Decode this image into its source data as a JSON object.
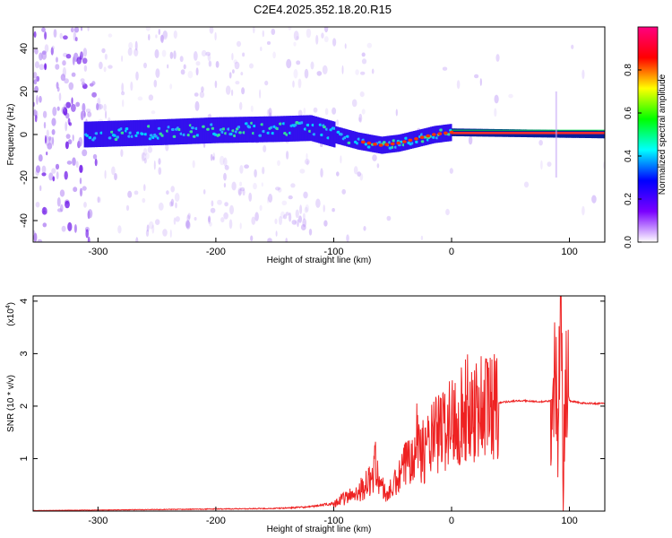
{
  "figure": {
    "title": "C2E4.2025.352.18.20.R15"
  },
  "chart_data": [
    {
      "type": "heatmap",
      "xlabel": "Height of straight line (km)",
      "ylabel": "Frequency (Hz)",
      "xlim": [
        -355,
        130
      ],
      "ylim": [
        -50,
        50
      ],
      "x_ticks": [
        -300,
        -200,
        -100,
        0,
        100
      ],
      "y_ticks": [
        -40,
        -20,
        0,
        20,
        40
      ],
      "colorbar": {
        "label": "Normalized spectral amplitude",
        "range": [
          0,
          1
        ],
        "ticks": [
          0.0,
          0.2,
          0.4,
          0.6,
          0.8
        ],
        "tick_labels": [
          "0.0",
          "0.2",
          "0.4",
          "0.6",
          "0.8"
        ],
        "colors": [
          "#ffffff",
          "#7a00ff",
          "#0000ff",
          "#00ffff",
          "#00ff00",
          "#ffff00",
          "#ff0000",
          "#ff0080"
        ]
      },
      "band_center_track": {
        "x": [
          -310,
          -250,
          -200,
          -150,
          -120,
          -100,
          -80,
          -60,
          -45,
          -30,
          -15,
          0,
          130
        ],
        "y": [
          0,
          1,
          2,
          2.5,
          3,
          0,
          -3,
          -5,
          -4,
          -2,
          0,
          1,
          0
        ]
      }
    },
    {
      "type": "line",
      "xlabel": "Height of straight line (km)",
      "ylabel": "SNR (10 * v/v)",
      "yscale_label": "(x10",
      "yscale_exponent": "4",
      "yscale_close": ")",
      "xlim": [
        -355,
        130
      ],
      "ylim": [
        0,
        4.1
      ],
      "x_ticks": [
        -300,
        -200,
        -100,
        0,
        100
      ],
      "y_ticks": [
        1,
        2,
        3,
        4
      ],
      "series_color": "#ee2222",
      "x": [
        -355,
        -300,
        -250,
        -200,
        -150,
        -120,
        -100,
        -85,
        -75,
        -68,
        -65,
        -60,
        -55,
        -45,
        -35,
        -30,
        -25,
        -15,
        -5,
        5,
        15,
        25,
        35,
        45,
        55,
        60,
        65,
        75,
        85,
        88,
        90,
        92,
        93,
        95,
        97,
        100,
        110,
        120,
        130
      ],
      "y": [
        0.01,
        0.02,
        0.03,
        0.04,
        0.05,
        0.08,
        0.15,
        0.3,
        0.45,
        0.6,
        0.9,
        0.5,
        0.3,
        0.6,
        1.1,
        1.5,
        1.1,
        1.4,
        1.6,
        1.8,
        1.95,
        2.0,
        2.05,
        2.08,
        2.1,
        2.1,
        2.1,
        2.08,
        2.1,
        2.8,
        1.4,
        3.3,
        4.05,
        0.4,
        2.5,
        2.1,
        2.06,
        2.05,
        2.05
      ]
    }
  ]
}
